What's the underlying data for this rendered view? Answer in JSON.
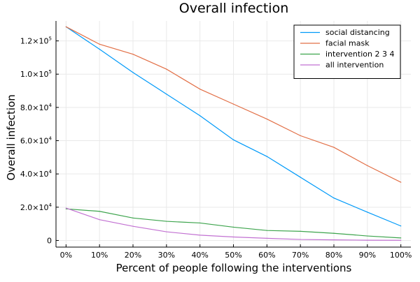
{
  "chart_data": {
    "type": "line",
    "title": "Overall infection",
    "xlabel": "Percent of people following the interventions",
    "ylabel": "Overall infection",
    "categories": [
      "0%",
      "10%",
      "20%",
      "30%",
      "40%",
      "50%",
      "60%",
      "70%",
      "80%",
      "90%",
      "100%"
    ],
    "x": [
      0,
      10,
      20,
      30,
      40,
      50,
      60,
      70,
      80,
      90,
      100
    ],
    "xlim": [
      -3,
      103
    ],
    "ylim": [
      -4000,
      132000
    ],
    "yticks": [
      0,
      20000,
      40000,
      60000,
      80000,
      100000,
      120000
    ],
    "ytick_labels": [
      {
        "mantissa": "0",
        "exp": ""
      },
      {
        "mantissa": "2.0×10",
        "exp": "4"
      },
      {
        "mantissa": "4.0×10",
        "exp": "4"
      },
      {
        "mantissa": "6.0×10",
        "exp": "4"
      },
      {
        "mantissa": "8.0×10",
        "exp": "4"
      },
      {
        "mantissa": "1.0×10",
        "exp": "5"
      },
      {
        "mantissa": "1.2×10",
        "exp": "5"
      }
    ],
    "grid": true,
    "legend": "top-right",
    "series": [
      {
        "name": "social distancing",
        "color": "#009af9",
        "values": [
          128500,
          115000,
          101000,
          88000,
          75000,
          60500,
          50500,
          38000,
          25500,
          17000,
          8700
        ]
      },
      {
        "name": "facial mask",
        "color": "#e26f46",
        "values": [
          128500,
          118000,
          112000,
          103000,
          91000,
          82000,
          73000,
          63000,
          56000,
          45000,
          35000
        ]
      },
      {
        "name": "intervention 2 3 4",
        "color": "#3da44d",
        "values": [
          19000,
          17500,
          13500,
          11500,
          10500,
          8000,
          6000,
          5500,
          4300,
          2700,
          1500
        ]
      },
      {
        "name": "all intervention",
        "color": "#c271d2",
        "values": [
          19500,
          12500,
          8500,
          5200,
          3200,
          2100,
          1300,
          600,
          350,
          150,
          80
        ]
      }
    ]
  }
}
